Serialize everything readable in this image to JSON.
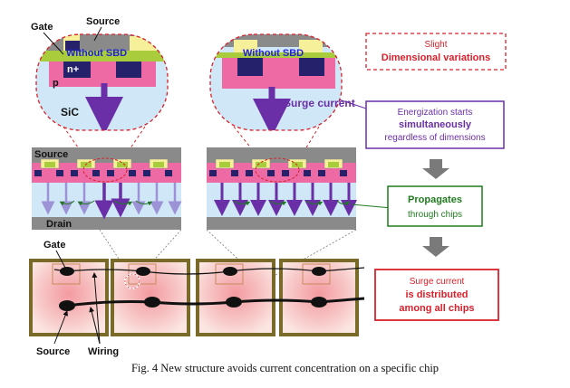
{
  "colors": {
    "pink": "#ee6aa5",
    "yellow": "#f7f09a",
    "green_band": "#a8cc3c",
    "navy": "#25226b",
    "sic": "#cfe7f7",
    "gray": "#8a8a8a",
    "arrow_purple": "#6a2fa6",
    "blue_text": "#2323d6",
    "red": "#d8202b",
    "green": "#1f7a1f",
    "chip_border": "#7a6a2a"
  },
  "left_zoom": {
    "gate": "Gate",
    "source": "Source",
    "without_sbd": "Without SBD",
    "nplus": "n+",
    "p": "p",
    "sic": "SiC"
  },
  "right_zoom": {
    "without_sbd": "Without SBD",
    "surge_current": "Surge current"
  },
  "cross_section": {
    "source": "Source",
    "drain": "Drain"
  },
  "chip_labels": {
    "gate": "Gate",
    "source": "Source",
    "wiring": "Wiring"
  },
  "flow": {
    "box1_line1": "Slight",
    "box1_line2": "Dimensional variations",
    "box2_line1": "Energization starts",
    "box2_line2": "simultaneously",
    "box2_line3": "regardless of dimensions",
    "box3_line1": "Propagates",
    "box3_line2": "through chips",
    "box4_line1": "Surge current",
    "box4_line2": "is distributed",
    "box4_line3": "among all chips"
  },
  "caption": "Fig. 4 New structure avoids current concentration on a specific chip"
}
